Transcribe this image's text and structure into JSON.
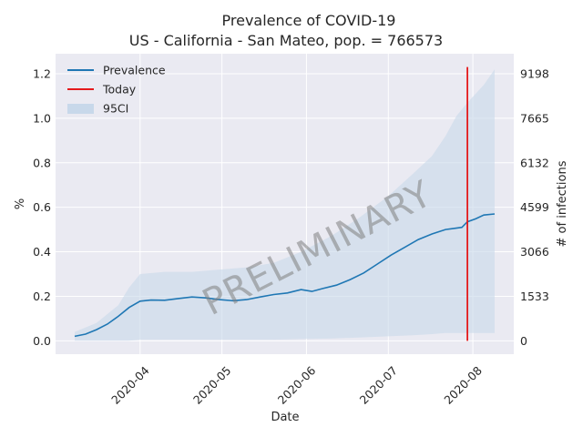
{
  "chart_data": {
    "type": "line",
    "title_line1": "Prevalence of COVID-19",
    "title_line2": "US - California - San Mateo, pop. = 766573",
    "xlabel": "Date",
    "ylabel": "%",
    "ylabel_right": "# of infections",
    "watermark": "PRELIMINARY",
    "x_ticks": [
      "2020-04",
      "2020-05",
      "2020-06",
      "2020-07",
      "2020-08"
    ],
    "x_range": [
      "2020-03-01",
      "2020-08-16"
    ],
    "y_ticks": [
      "0.0",
      "0.2",
      "0.4",
      "0.6",
      "0.8",
      "1.0",
      "1.2"
    ],
    "ylim": [
      -0.06,
      1.29
    ],
    "y2_ticks": [
      "0",
      "1533",
      "3066",
      "4599",
      "6132",
      "7665",
      "9198"
    ],
    "today": "2020-07-30",
    "legend": [
      {
        "label": "Prevalence",
        "kind": "line",
        "color": "#1f77b4"
      },
      {
        "label": "Today",
        "kind": "line",
        "color": "#e41a1c"
      },
      {
        "label": "95CI",
        "kind": "patch",
        "color": "#c8d8ea"
      }
    ],
    "series": [
      {
        "name": "Prevalence",
        "x": [
          "2020-03-08",
          "2020-03-12",
          "2020-03-16",
          "2020-03-20",
          "2020-03-24",
          "2020-03-28",
          "2020-04-01",
          "2020-04-05",
          "2020-04-10",
          "2020-04-15",
          "2020-04-20",
          "2020-04-25",
          "2020-04-30",
          "2020-05-05",
          "2020-05-10",
          "2020-05-15",
          "2020-05-20",
          "2020-05-25",
          "2020-05-30",
          "2020-06-03",
          "2020-06-07",
          "2020-06-12",
          "2020-06-17",
          "2020-06-22",
          "2020-06-27",
          "2020-07-02",
          "2020-07-07",
          "2020-07-12",
          "2020-07-17",
          "2020-07-22",
          "2020-07-25",
          "2020-07-28",
          "2020-07-30",
          "2020-08-02",
          "2020-08-05",
          "2020-08-09"
        ],
        "values": [
          0.02,
          0.03,
          0.05,
          0.075,
          0.11,
          0.15,
          0.178,
          0.183,
          0.182,
          0.19,
          0.197,
          0.193,
          0.185,
          0.18,
          0.185,
          0.197,
          0.208,
          0.215,
          0.23,
          0.222,
          0.235,
          0.25,
          0.275,
          0.305,
          0.345,
          0.385,
          0.42,
          0.455,
          0.48,
          0.5,
          0.505,
          0.51,
          0.535,
          0.548,
          0.565,
          0.57
        ]
      },
      {
        "name": "95CI",
        "x": [
          "2020-03-08",
          "2020-03-16",
          "2020-03-24",
          "2020-03-28",
          "2020-04-01",
          "2020-04-10",
          "2020-04-20",
          "2020-04-30",
          "2020-05-10",
          "2020-05-20",
          "2020-05-30",
          "2020-06-10",
          "2020-06-20",
          "2020-07-01",
          "2020-07-10",
          "2020-07-17",
          "2020-07-22",
          "2020-07-26",
          "2020-07-30",
          "2020-08-05",
          "2020-08-09"
        ],
        "lower": [
          0.0,
          0.0,
          0.0,
          0.0,
          0.005,
          0.005,
          0.005,
          0.005,
          0.005,
          0.005,
          0.008,
          0.01,
          0.015,
          0.02,
          0.025,
          0.03,
          0.035,
          0.035,
          0.035,
          0.035,
          0.035
        ],
        "upper": [
          0.04,
          0.08,
          0.16,
          0.24,
          0.3,
          0.31,
          0.31,
          0.32,
          0.33,
          0.35,
          0.4,
          0.47,
          0.55,
          0.65,
          0.75,
          0.83,
          0.92,
          1.01,
          1.07,
          1.15,
          1.22
        ]
      }
    ]
  }
}
